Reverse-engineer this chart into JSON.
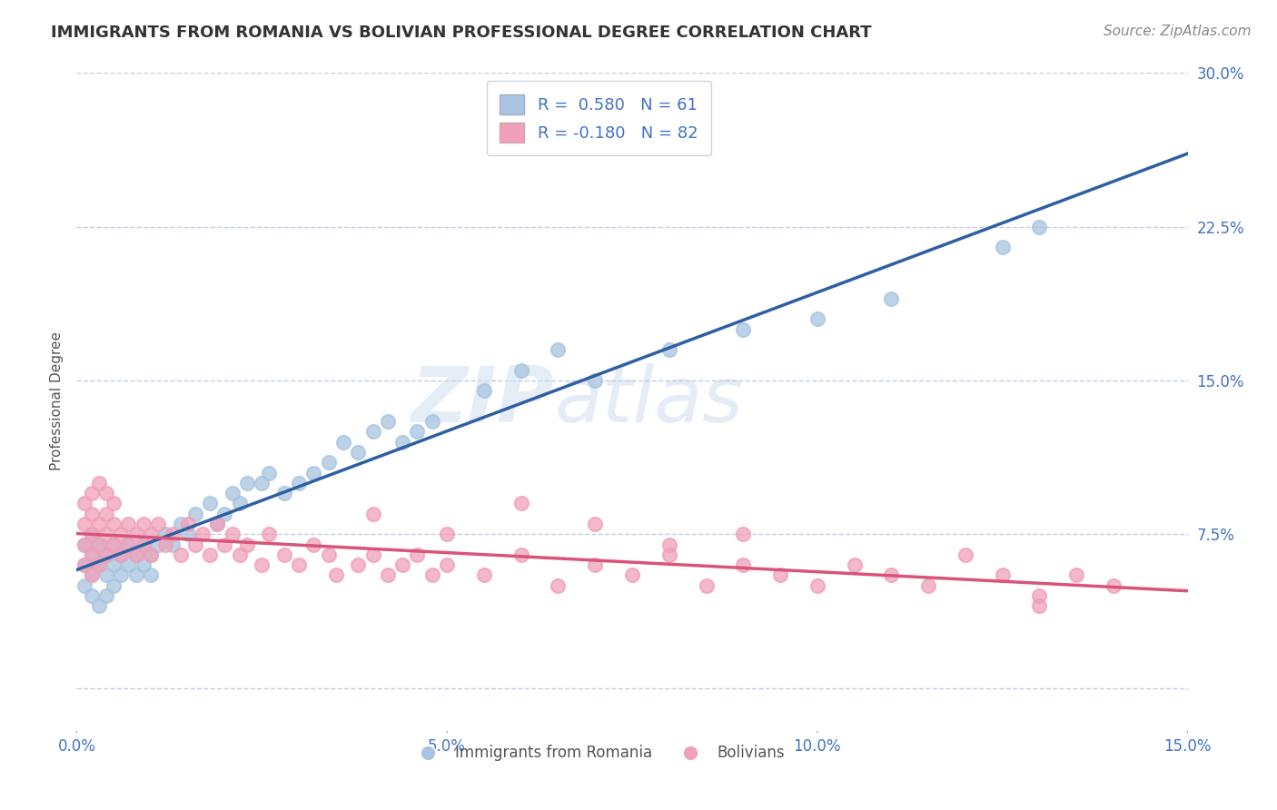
{
  "title": "IMMIGRANTS FROM ROMANIA VS BOLIVIAN PROFESSIONAL DEGREE CORRELATION CHART",
  "source_text": "Source: ZipAtlas.com",
  "ylabel": "Professional Degree",
  "watermark": "ZIPatlas",
  "xlim": [
    0.0,
    0.15
  ],
  "ylim": [
    -0.02,
    0.3
  ],
  "xticks": [
    0.0,
    0.05,
    0.1,
    0.15
  ],
  "xtick_labels": [
    "0.0%",
    "5.0%",
    "10.0%",
    "15.0%"
  ],
  "yticks": [
    0.0,
    0.075,
    0.15,
    0.225,
    0.3
  ],
  "ytick_labels": [
    "",
    "7.5%",
    "15.0%",
    "22.5%",
    "30.0%"
  ],
  "series1_name": "Immigrants from Romania",
  "series1_R": 0.58,
  "series1_N": 61,
  "series1_color": "#a8c4e0",
  "series1_line_color": "#2e5fa3",
  "series2_name": "Bolivians",
  "series2_R": -0.18,
  "series2_N": 82,
  "series2_color": "#f0a0b8",
  "series2_line_color": "#d9547a",
  "background_color": "#ffffff",
  "grid_color": "#c0cfe0",
  "title_color": "#333333",
  "axis_color": "#4472c4",
  "legend_fontsize": 13,
  "title_fontsize": 13,
  "series1_x": [
    0.001,
    0.001,
    0.001,
    0.002,
    0.002,
    0.002,
    0.002,
    0.003,
    0.003,
    0.003,
    0.004,
    0.004,
    0.004,
    0.005,
    0.005,
    0.005,
    0.006,
    0.006,
    0.007,
    0.007,
    0.008,
    0.008,
    0.009,
    0.009,
    0.01,
    0.01,
    0.011,
    0.012,
    0.013,
    0.014,
    0.015,
    0.016,
    0.018,
    0.019,
    0.02,
    0.021,
    0.022,
    0.023,
    0.025,
    0.026,
    0.028,
    0.03,
    0.032,
    0.034,
    0.036,
    0.038,
    0.04,
    0.042,
    0.044,
    0.046,
    0.048,
    0.055,
    0.06,
    0.065,
    0.07,
    0.08,
    0.09,
    0.1,
    0.11,
    0.125,
    0.13
  ],
  "series1_y": [
    0.06,
    0.07,
    0.05,
    0.065,
    0.055,
    0.075,
    0.045,
    0.06,
    0.07,
    0.04,
    0.065,
    0.055,
    0.045,
    0.07,
    0.06,
    0.05,
    0.065,
    0.055,
    0.07,
    0.06,
    0.065,
    0.055,
    0.07,
    0.06,
    0.065,
    0.055,
    0.07,
    0.075,
    0.07,
    0.08,
    0.075,
    0.085,
    0.09,
    0.08,
    0.085,
    0.095,
    0.09,
    0.1,
    0.1,
    0.105,
    0.095,
    0.1,
    0.105,
    0.11,
    0.12,
    0.115,
    0.125,
    0.13,
    0.12,
    0.125,
    0.13,
    0.145,
    0.155,
    0.165,
    0.15,
    0.165,
    0.175,
    0.18,
    0.19,
    0.215,
    0.225
  ],
  "series2_x": [
    0.001,
    0.001,
    0.001,
    0.001,
    0.002,
    0.002,
    0.002,
    0.002,
    0.002,
    0.003,
    0.003,
    0.003,
    0.003,
    0.004,
    0.004,
    0.004,
    0.004,
    0.005,
    0.005,
    0.005,
    0.006,
    0.006,
    0.007,
    0.007,
    0.008,
    0.008,
    0.009,
    0.009,
    0.01,
    0.01,
    0.011,
    0.012,
    0.013,
    0.014,
    0.015,
    0.016,
    0.017,
    0.018,
    0.019,
    0.02,
    0.021,
    0.022,
    0.023,
    0.025,
    0.026,
    0.028,
    0.03,
    0.032,
    0.034,
    0.035,
    0.038,
    0.04,
    0.042,
    0.044,
    0.046,
    0.048,
    0.05,
    0.055,
    0.06,
    0.065,
    0.07,
    0.075,
    0.08,
    0.085,
    0.09,
    0.095,
    0.1,
    0.105,
    0.11,
    0.115,
    0.12,
    0.125,
    0.13,
    0.135,
    0.14,
    0.04,
    0.05,
    0.06,
    0.07,
    0.08,
    0.09,
    0.13
  ],
  "series2_y": [
    0.07,
    0.08,
    0.06,
    0.09,
    0.075,
    0.085,
    0.065,
    0.095,
    0.055,
    0.08,
    0.07,
    0.06,
    0.1,
    0.075,
    0.085,
    0.065,
    0.095,
    0.08,
    0.07,
    0.09,
    0.075,
    0.065,
    0.08,
    0.07,
    0.075,
    0.065,
    0.08,
    0.07,
    0.075,
    0.065,
    0.08,
    0.07,
    0.075,
    0.065,
    0.08,
    0.07,
    0.075,
    0.065,
    0.08,
    0.07,
    0.075,
    0.065,
    0.07,
    0.06,
    0.075,
    0.065,
    0.06,
    0.07,
    0.065,
    0.055,
    0.06,
    0.065,
    0.055,
    0.06,
    0.065,
    0.055,
    0.06,
    0.055,
    0.065,
    0.05,
    0.06,
    0.055,
    0.065,
    0.05,
    0.06,
    0.055,
    0.05,
    0.06,
    0.055,
    0.05,
    0.065,
    0.055,
    0.045,
    0.055,
    0.05,
    0.085,
    0.075,
    0.09,
    0.08,
    0.07,
    0.075,
    0.04
  ]
}
